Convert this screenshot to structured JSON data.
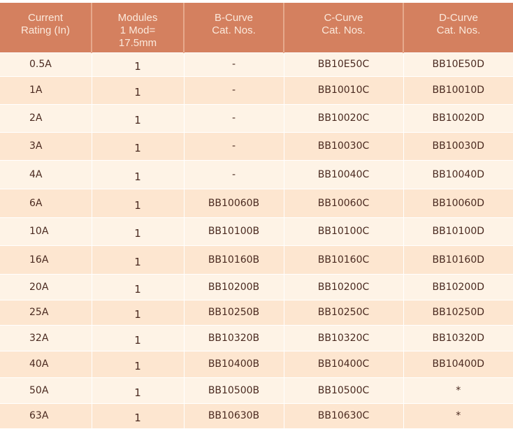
{
  "headers": [
    [
      "Current",
      "Rating (In)"
    ],
    [
      "Modules",
      "1 Mod=",
      "17.5mm"
    ],
    [
      "B-Curve",
      "Cat. Nos."
    ],
    [
      "C-Curve",
      "Cat. Nos."
    ],
    [
      "D-Curve",
      "Cat. Nos."
    ]
  ],
  "rows": [
    [
      "0.5A",
      "1",
      "-",
      "BB10E50C",
      "BB10E50D"
    ],
    [
      "1A",
      "1",
      "-",
      "BB10010C",
      "BB10010D"
    ],
    [
      "2A",
      "1",
      "-",
      "BB10020C",
      "BB10020D"
    ],
    [
      "3A",
      "1",
      "-",
      "BB10030C",
      "BB10030D"
    ],
    [
      "4A",
      "1",
      "-",
      "BB10040C",
      "BB10040D"
    ],
    [
      "6A",
      "1",
      "BB10060B",
      "BB10060C",
      "BB10060D"
    ],
    [
      "10A",
      "1",
      "BB10100B",
      "BB10100C",
      "BB10100D"
    ],
    [
      "16A",
      "1",
      "BB10160B",
      "BB10160C",
      "BB10160D"
    ],
    [
      "20A",
      "1",
      "BB10200B",
      "BB10200C",
      "BB10200D"
    ],
    [
      "25A",
      "1",
      "BB10250B",
      "BB10250C",
      "BB10250D"
    ],
    [
      "32A",
      "1",
      "BB10320B",
      "BB10320C",
      "BB10320D"
    ],
    [
      "40A",
      "1",
      "BB10400B",
      "BB10400C",
      "BB10400D"
    ],
    [
      "50A",
      "1",
      "BB10500B",
      "BB10500C",
      "*"
    ],
    [
      "63A",
      "1",
      "BB10630B",
      "BB10630C",
      "*"
    ]
  ],
  "colors": {
    "header": "#d4805f",
    "row_light": "#fef3e6",
    "row_dark": "#fde6d0",
    "text": "#4a2a20"
  }
}
